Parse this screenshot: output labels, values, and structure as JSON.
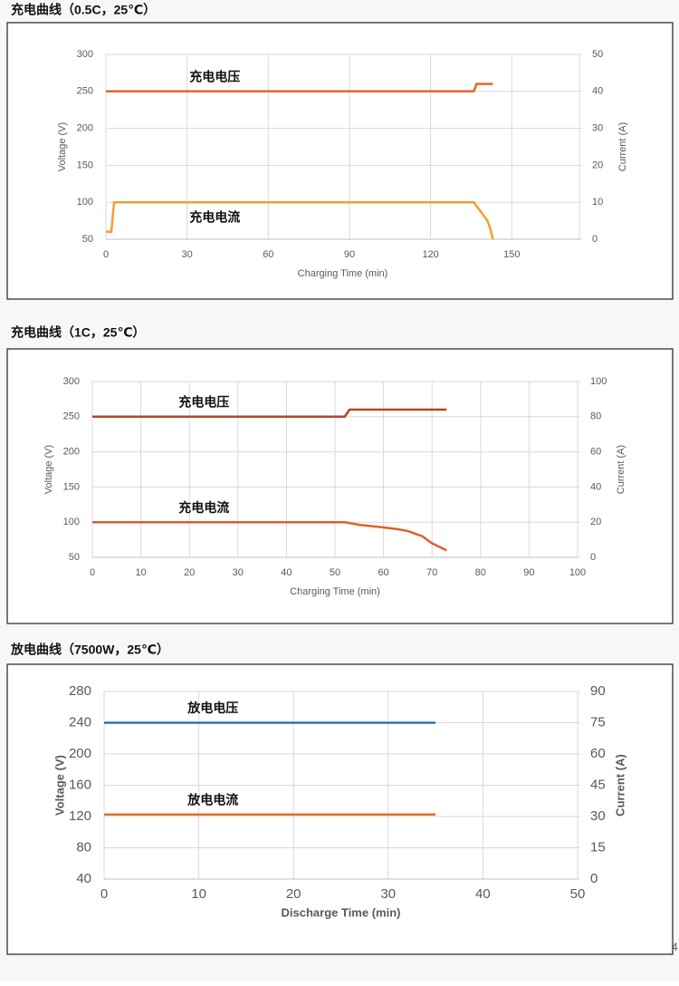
{
  "chart_data": [
    {
      "type": "line",
      "title": "充电曲线（0.5C，25℃）",
      "xlabel": "Charging Time (min)",
      "ylabel": "Voltage (V)",
      "y2label": "Current (A)",
      "xlim": [
        0,
        175
      ],
      "xticks": [
        0,
        30,
        60,
        90,
        120,
        150
      ],
      "ylim": [
        50,
        300
      ],
      "yticks": [
        50,
        100,
        150,
        200,
        250,
        300
      ],
      "y2lim": [
        0,
        50
      ],
      "y2ticks": [
        0,
        10,
        20,
        30,
        40,
        50
      ],
      "grid": true,
      "series": [
        {
          "name": "充电电压",
          "color": "#e0662a",
          "x": [
            0,
            136,
            137,
            143
          ],
          "values": [
            250,
            250,
            260,
            260
          ]
        },
        {
          "name": "充电电流",
          "color": "#f0a030",
          "axis": "y2",
          "x": [
            0,
            2,
            3,
            136,
            139,
            141,
            142,
            143
          ],
          "values": [
            2,
            2,
            10,
            10,
            7,
            5,
            3,
            0
          ]
        }
      ]
    },
    {
      "type": "line",
      "title": "充电曲线（1C，25℃）",
      "xlabel": "Charging Time (min)",
      "ylabel": "Voltage (V)",
      "y2label": "Current (A)",
      "xlim": [
        0,
        100
      ],
      "xticks": [
        0,
        10,
        20,
        30,
        40,
        50,
        60,
        70,
        80,
        90,
        100
      ],
      "ylim": [
        50,
        300
      ],
      "yticks": [
        50,
        100,
        150,
        200,
        250,
        300
      ],
      "y2lim": [
        0,
        100
      ],
      "y2ticks": [
        0,
        20,
        40,
        60,
        80,
        100
      ],
      "grid": true,
      "series": [
        {
          "name": "充电电压",
          "color": "#b8442a",
          "x": [
            0,
            52,
            53,
            73
          ],
          "values": [
            250,
            250,
            260,
            260
          ]
        },
        {
          "name": "充电电流",
          "color": "#d9622b",
          "axis": "y2",
          "x": [
            0,
            52,
            55,
            60,
            63,
            65,
            68,
            70,
            73
          ],
          "values": [
            20,
            20,
            18.5,
            17,
            16,
            15,
            12,
            8,
            4
          ]
        }
      ]
    },
    {
      "type": "line",
      "title": "放电曲线（7500W，25℃）",
      "xlabel": "Discharge Time  (min)",
      "ylabel": "Voltage  (V)",
      "y2label": "Current  (A)",
      "xlim": [
        0,
        50
      ],
      "xticks": [
        0,
        10,
        20,
        30,
        40,
        50
      ],
      "ylim": [
        40,
        280
      ],
      "yticks": [
        40,
        80,
        120,
        160,
        200,
        240,
        280
      ],
      "y2lim": [
        0,
        90
      ],
      "y2ticks": [
        0,
        15,
        30,
        45,
        60,
        75,
        90
      ],
      "grid": true,
      "series": [
        {
          "name": "放电电压",
          "color": "#2e75b6",
          "x": [
            0,
            35
          ],
          "values": [
            240,
            240
          ]
        },
        {
          "name": "放电电流",
          "color": "#e36c2a",
          "axis": "y2",
          "x": [
            0,
            35
          ],
          "values": [
            31,
            31
          ]
        }
      ]
    }
  ],
  "page_number": "4"
}
